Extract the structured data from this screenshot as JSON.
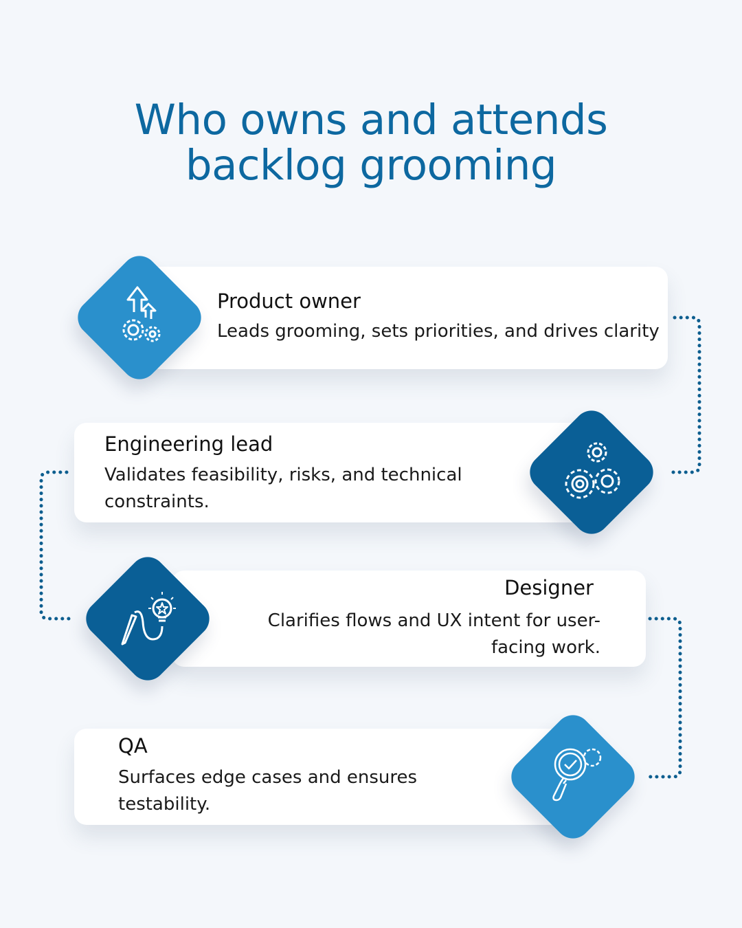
{
  "title": {
    "line1": "Who owns and attends",
    "line2": "backlog grooming"
  },
  "colors": {
    "title": "#0d68a0",
    "light_blue": "#2a90cc",
    "dark_blue": "#0a5f96",
    "connector": "#0d5e8f"
  },
  "roles": [
    {
      "name": "Product owner",
      "description": "Leads grooming, sets priorities, and drives clarity",
      "icon": "arrows-up-gears-icon"
    },
    {
      "name": "Engineering lead",
      "description": "Validates feasibility, risks, and technical constraints.",
      "icon": "gears-icon"
    },
    {
      "name": "Designer",
      "description": "Clarifies flows and UX intent for user-facing work.",
      "icon": "pencil-lightbulb-icon"
    },
    {
      "name": "QA",
      "description": "Surfaces edge cases and ensures testability.",
      "icon": "magnifier-check-gear-icon"
    }
  ]
}
